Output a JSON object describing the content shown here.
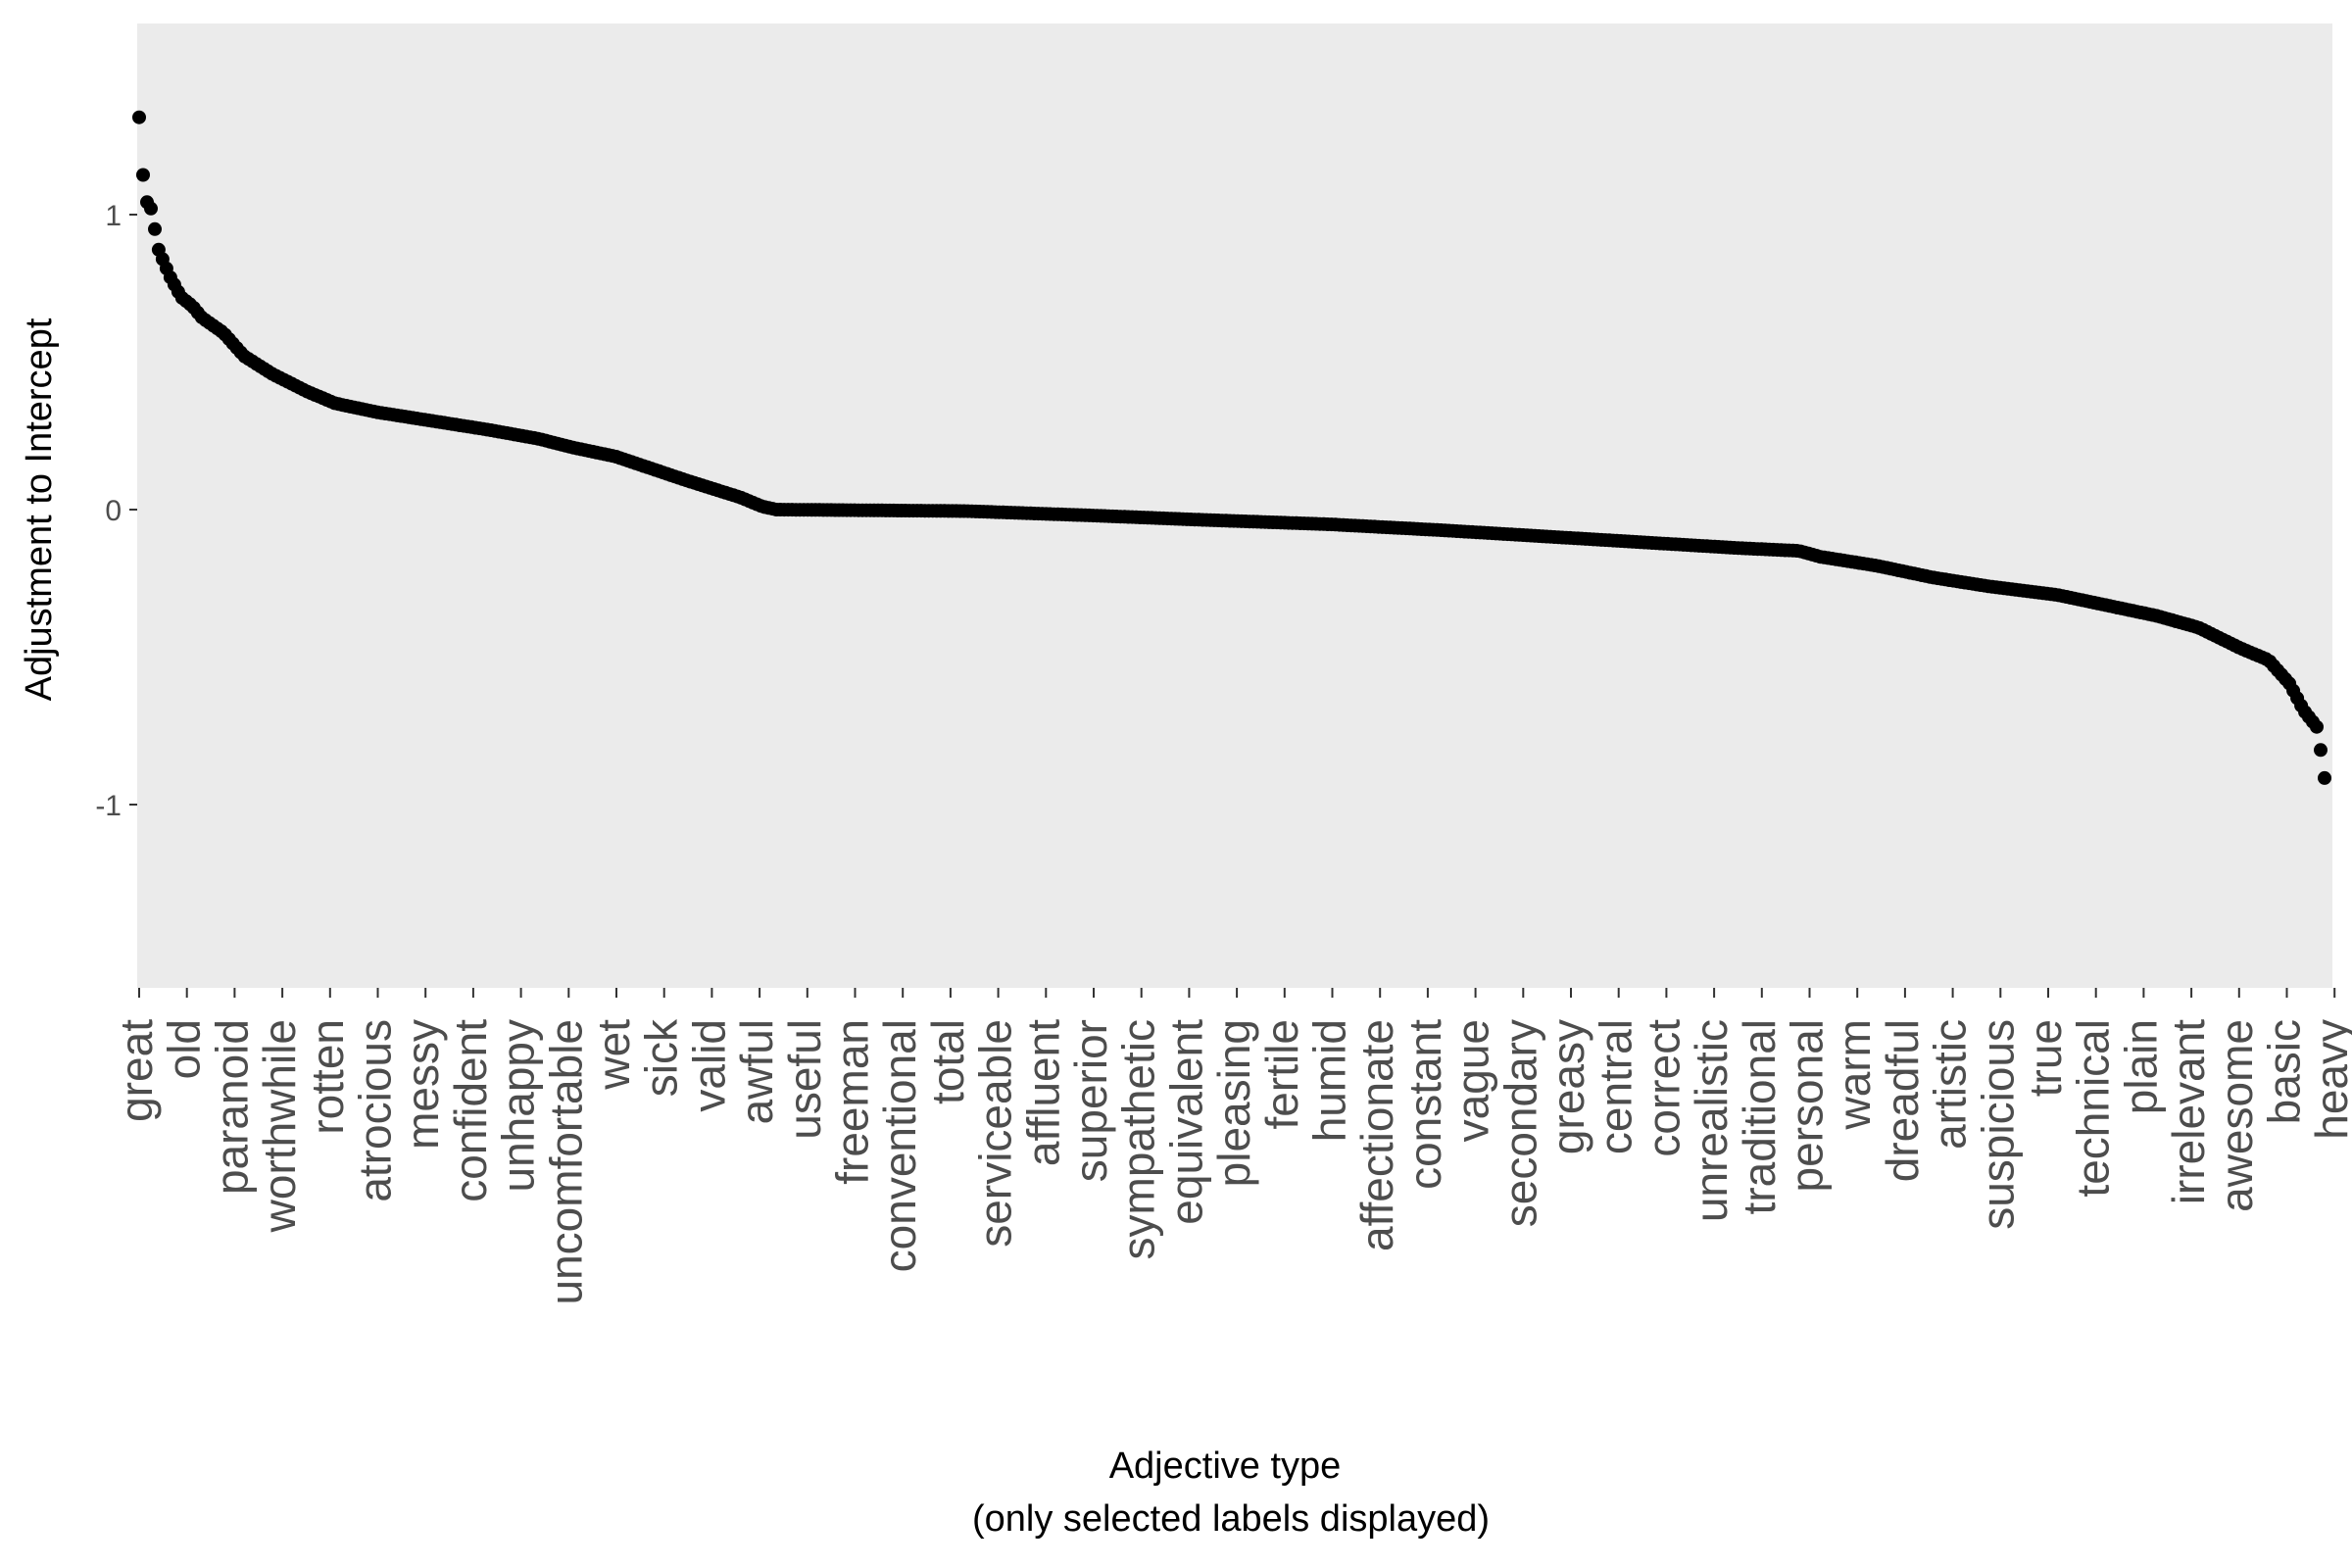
{
  "chart_data": {
    "type": "scatter",
    "xlabel": "Adjective type",
    "xlabel_note": "(only selected labels displayed)",
    "ylabel": "Adjustment to Intercept",
    "ylim": [
      -1.62,
      1.65
    ],
    "y_ticks": [
      1,
      0,
      -1
    ],
    "y_tick_labels": [
      "1",
      "0",
      "-1"
    ],
    "grid": false,
    "panel_color": "#ebebeb",
    "point_color": "#000000",
    "n_points": 560,
    "x_labels": [
      "great",
      "old",
      "paranoid",
      "worthwhile",
      "rotten",
      "atrocious",
      "messy",
      "confident",
      "unhappy",
      "uncomfortable",
      "wet",
      "sick",
      "valid",
      "awful",
      "useful",
      "freeman",
      "conventional",
      "total",
      "serviceable",
      "affluent",
      "superior",
      "sympathetic",
      "equivalent",
      "pleasing",
      "fertile",
      "humid",
      "affectionate",
      "constant",
      "vague",
      "secondary",
      "greasy",
      "central",
      "correct",
      "unrealistic",
      "traditional",
      "personal",
      "warm",
      "dreadful",
      "artistic",
      "suspicious",
      "true",
      "technical",
      "plain",
      "irrelevant",
      "awesome",
      "basic",
      "heavy"
    ],
    "y_profile": [
      [
        0,
        1.33
      ],
      [
        4,
        1.05
      ],
      [
        8,
        1.03
      ],
      [
        14,
        0.88
      ],
      [
        22,
        0.79
      ],
      [
        30,
        0.72
      ],
      [
        38,
        0.69
      ],
      [
        45,
        0.65
      ],
      [
        60,
        0.6
      ],
      [
        75,
        0.52
      ],
      [
        95,
        0.46
      ],
      [
        120,
        0.4
      ],
      [
        140,
        0.36
      ],
      [
        170,
        0.33
      ],
      [
        210,
        0.3
      ],
      [
        250,
        0.27
      ],
      [
        285,
        0.24
      ],
      [
        310,
        0.21
      ],
      [
        340,
        0.18
      ],
      [
        365,
        0.14
      ],
      [
        390,
        0.1
      ],
      [
        410,
        0.07
      ],
      [
        430,
        0.04
      ],
      [
        445,
        0.01
      ],
      [
        455,
        0.0
      ],
      [
        590,
        -0.005
      ],
      [
        680,
        -0.02
      ],
      [
        760,
        -0.035
      ],
      [
        850,
        -0.05
      ],
      [
        930,
        -0.07
      ],
      [
        1000,
        -0.09
      ],
      [
        1070,
        -0.11
      ],
      [
        1140,
        -0.13
      ],
      [
        1185,
        -0.14
      ],
      [
        1200,
        -0.16
      ],
      [
        1240,
        -0.19
      ],
      [
        1280,
        -0.23
      ],
      [
        1320,
        -0.26
      ],
      [
        1370,
        -0.29
      ],
      [
        1400,
        -0.32
      ],
      [
        1440,
        -0.36
      ],
      [
        1470,
        -0.4
      ],
      [
        1500,
        -0.47
      ],
      [
        1520,
        -0.51
      ],
      [
        1535,
        -0.59
      ],
      [
        1545,
        -0.68
      ],
      [
        1555,
        -0.74
      ],
      [
        1560,
        -0.91
      ]
    ]
  }
}
